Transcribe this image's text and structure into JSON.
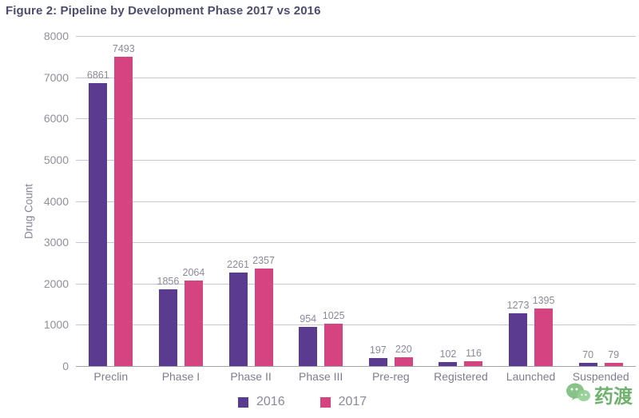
{
  "title": "Figure 2: Pipeline by Development Phase 2017 vs 2016",
  "colors": {
    "series_2016": "#5b3b90",
    "series_2017": "#d44480",
    "gridline": "#c6c6ce",
    "axis_line": "#a3a3ae",
    "tick_text": "#8f8f9e",
    "title_text": "#4d4d6e",
    "watermark_green": "#4ba04b"
  },
  "chart_data": {
    "type": "bar",
    "title": "Figure 2: Pipeline by Development Phase 2017 vs 2016",
    "categories": [
      "Preclin",
      "Phase I",
      "Phase II",
      "Phase III",
      "Pre-reg",
      "Registered",
      "Launched",
      "Suspended"
    ],
    "series": [
      {
        "name": "2016",
        "color": "#5b3b90",
        "values": [
          6861,
          1856,
          2261,
          954,
          197,
          102,
          1273,
          70
        ]
      },
      {
        "name": "2017",
        "color": "#d44480",
        "values": [
          7493,
          2064,
          2357,
          1025,
          220,
          116,
          1395,
          79
        ]
      }
    ],
    "xlabel": "",
    "ylabel": "Drug Count",
    "ylim": [
      0,
      8000
    ],
    "ytick_step": 1000,
    "grid": true,
    "legend_position": "bottom"
  },
  "legend": {
    "items": [
      {
        "label": "2016"
      },
      {
        "label": "2017"
      }
    ]
  },
  "watermark": {
    "text": "药渡"
  }
}
